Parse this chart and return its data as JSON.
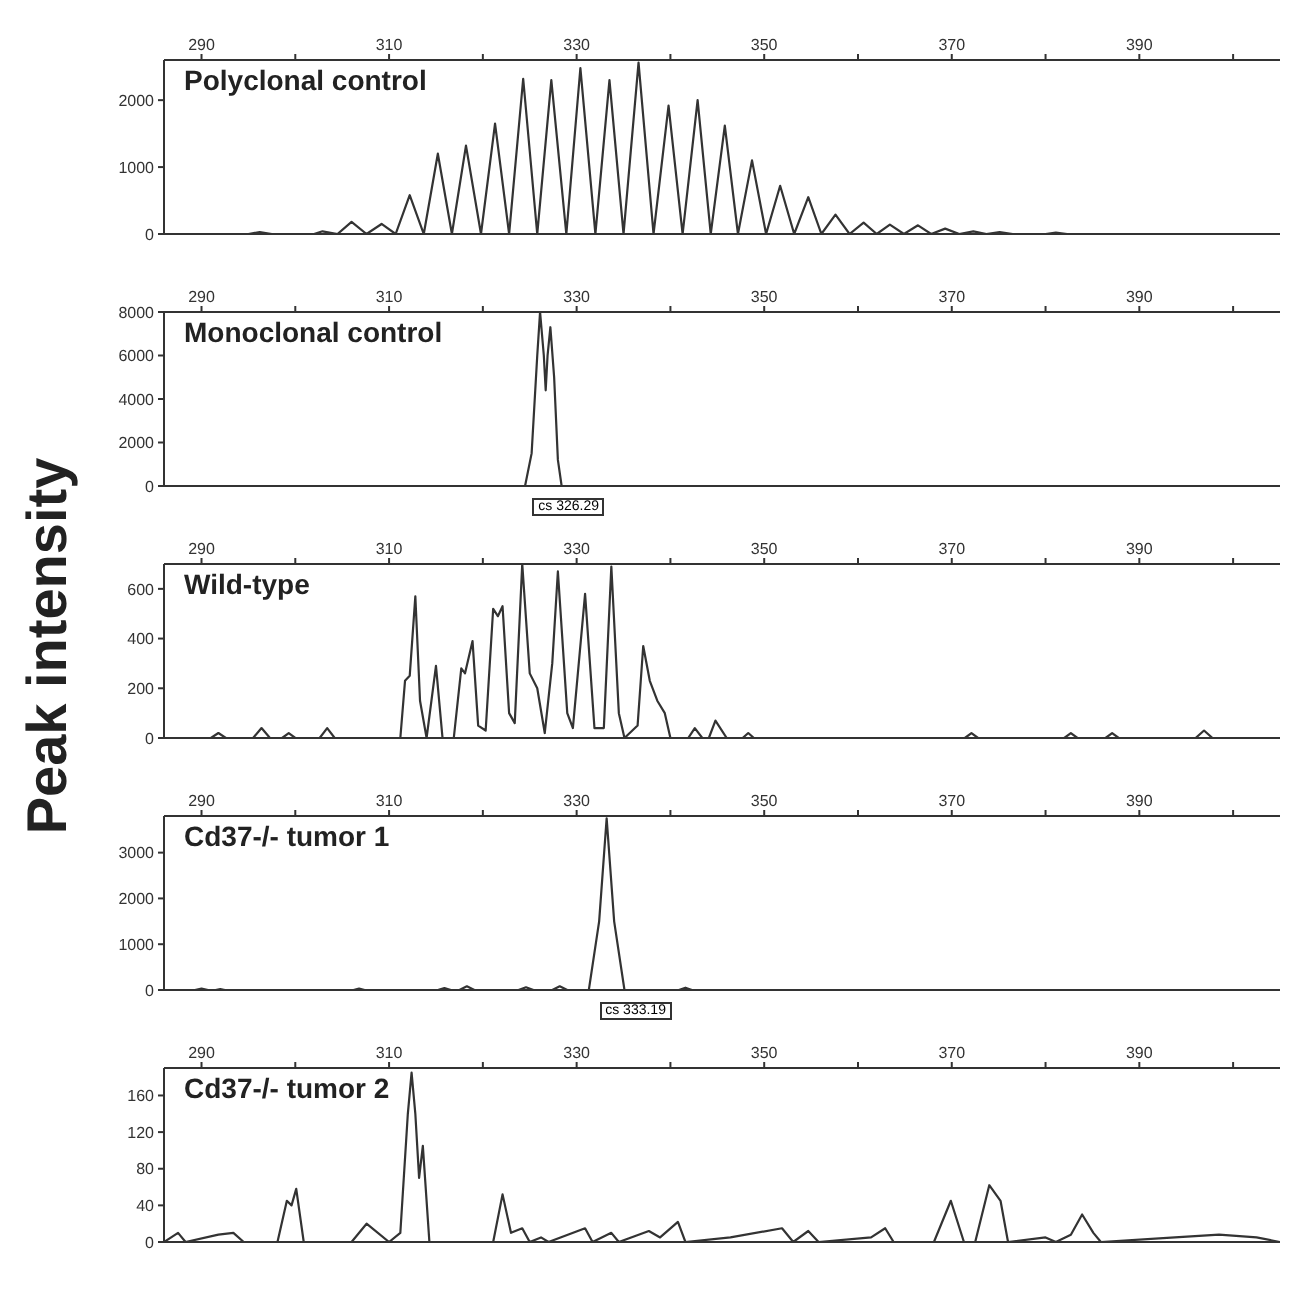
{
  "chart_data": [
    {
      "type": "line",
      "title": "Polyclonal control",
      "color": "#333333",
      "xlim": [
        286,
        405
      ],
      "xticks": [
        290,
        {
          "value": 300,
          "label": null
        },
        310,
        {
          "value": 320,
          "label": null
        },
        330,
        {
          "value": 340,
          "label": null
        },
        350,
        {
          "value": 360,
          "label": null
        },
        370,
        {
          "value": 380,
          "label": null
        },
        390,
        {
          "value": 400,
          "label": null
        }
      ],
      "ylim": [
        0,
        2600
      ],
      "yticks": [
        0,
        1000,
        2000
      ],
      "marker": "none",
      "line_style": "solid",
      "x": [
        286,
        295,
        296.2,
        297.5,
        302,
        302.9,
        304.5,
        306.0,
        307.6,
        309.2,
        310.7,
        312.2,
        313.7,
        315.2,
        316.7,
        318.2,
        319.8,
        321.3,
        322.8,
        324.3,
        325.8,
        327.3,
        328.9,
        330.4,
        332.0,
        333.5,
        335.0,
        336.6,
        338.2,
        339.8,
        341.3,
        342.9,
        344.3,
        345.8,
        347.2,
        348.7,
        350.2,
        351.7,
        353.2,
        354.7,
        356.1,
        357.6,
        359.1,
        360.6,
        362.0,
        363.4,
        364.9,
        366.4,
        367.8,
        369.3,
        370.8,
        372.3,
        373.7,
        375.1,
        376.5,
        380,
        381.1,
        382.3,
        405
      ],
      "values": [
        0,
        0,
        30,
        0,
        0,
        40,
        0,
        180,
        0,
        150,
        0,
        580,
        0,
        1200,
        0,
        1320,
        0,
        1650,
        0,
        2320,
        0,
        2300,
        0,
        2480,
        0,
        2300,
        0,
        2560,
        0,
        1920,
        0,
        2000,
        0,
        1620,
        0,
        1100,
        0,
        720,
        0,
        550,
        0,
        290,
        0,
        170,
        0,
        140,
        0,
        130,
        0,
        80,
        0,
        40,
        0,
        30,
        0,
        0,
        20,
        0,
        0
      ]
    },
    {
      "type": "line",
      "title": "Monoclonal control",
      "color": "#333333",
      "xlim": [
        286,
        405
      ],
      "xticks": [
        290,
        {
          "value": 300,
          "label": null
        },
        310,
        {
          "value": 320,
          "label": null
        },
        330,
        {
          "value": 340,
          "label": null
        },
        350,
        {
          "value": 360,
          "label": null
        },
        370,
        {
          "value": 380,
          "label": null
        },
        390,
        {
          "value": 400,
          "label": null
        }
      ],
      "ylim": [
        0,
        8000
      ],
      "yticks": [
        0,
        2000,
        4000,
        6000,
        8000
      ],
      "marker": "none",
      "line_style": "solid",
      "x": [
        286,
        324.5,
        325.2,
        325.8,
        326.1,
        326.5,
        326.7,
        326.9,
        327.2,
        327.6,
        328.0,
        328.4,
        405
      ],
      "values": [
        0,
        0,
        1500,
        6000,
        8000,
        6000,
        4400,
        6000,
        7300,
        5000,
        1200,
        0,
        0
      ],
      "annotations": [
        "cs 326.29"
      ]
    },
    {
      "type": "line",
      "title": "Wild-type",
      "ylabel": "Peak intensity",
      "color": "#333333",
      "xlim": [
        286,
        405
      ],
      "xticks": [
        290,
        {
          "value": 300,
          "label": null
        },
        310,
        {
          "value": 320,
          "label": null
        },
        330,
        {
          "value": 340,
          "label": null
        },
        350,
        {
          "value": 360,
          "label": null
        },
        370,
        {
          "value": 380,
          "label": null
        },
        390,
        {
          "value": 400,
          "label": null
        }
      ],
      "ylim": [
        0,
        700
      ],
      "yticks": [
        0,
        200,
        400,
        600
      ],
      "marker": "none",
      "line_style": "solid",
      "x": [
        286,
        291,
        291.8,
        292.6,
        295.5,
        296.4,
        297.3,
        298.6,
        299.3,
        300.0,
        302.6,
        303.4,
        304.2,
        305.8,
        306.4,
        307.0,
        311.2,
        311.7,
        312.2,
        312.8,
        313.3,
        314.0,
        315.0,
        315.7,
        316.9,
        317.7,
        318.1,
        318.9,
        319.5,
        320.3,
        321.1,
        321.6,
        322.1,
        322.8,
        323.4,
        324.2,
        325.0,
        325.8,
        326.6,
        327.4,
        328.0,
        329.0,
        329.6,
        330.9,
        331.9,
        332.9,
        333.7,
        334.5,
        335.1,
        336.5,
        337.1,
        337.8,
        338.6,
        339.4,
        340.0,
        341.9,
        342.6,
        343.4,
        344.1,
        344.8,
        346.0,
        347.7,
        348.3,
        348.9,
        371.4,
        372.1,
        372.8,
        382.0,
        382.7,
        383.4,
        386.4,
        387.1,
        387.8,
        396.0,
        396.9,
        397.8,
        405
      ],
      "values": [
        0,
        0,
        20,
        0,
        0,
        40,
        0,
        0,
        20,
        0,
        0,
        40,
        0,
        0,
        0,
        0,
        0,
        230,
        250,
        570,
        150,
        0,
        290,
        0,
        0,
        280,
        260,
        390,
        50,
        30,
        520,
        490,
        530,
        100,
        60,
        700,
        260,
        200,
        20,
        300,
        670,
        100,
        40,
        580,
        40,
        40,
        690,
        100,
        0,
        50,
        370,
        230,
        150,
        100,
        0,
        0,
        40,
        0,
        0,
        70,
        0,
        0,
        20,
        0,
        0,
        20,
        0,
        0,
        20,
        0,
        0,
        20,
        0,
        0,
        30,
        0,
        0
      ]
    },
    {
      "type": "line",
      "title": "Cd37-/- tumor 1",
      "color": "#333333",
      "xlim": [
        286,
        405
      ],
      "xticks": [
        290,
        {
          "value": 300,
          "label": null
        },
        310,
        {
          "value": 320,
          "label": null
        },
        330,
        {
          "value": 340,
          "label": null
        },
        350,
        {
          "value": 360,
          "label": null
        },
        370,
        {
          "value": 380,
          "label": null
        },
        390,
        {
          "value": 400,
          "label": null
        }
      ],
      "ylim": [
        0,
        3800
      ],
      "yticks": [
        0,
        1000,
        2000,
        3000
      ],
      "marker": "none",
      "line_style": "solid",
      "x": [
        286,
        289.3,
        290,
        290.7,
        291.5,
        292,
        292.5,
        306.2,
        306.8,
        307.4,
        315.2,
        315.9,
        316.6,
        317.5,
        318.3,
        319.1,
        323.8,
        324.6,
        325.4,
        327.4,
        328.2,
        329.0,
        331.3,
        332.4,
        333.2,
        334.0,
        335.1,
        340.9,
        341.6,
        342.3,
        405
      ],
      "values": [
        0,
        0,
        30,
        0,
        0,
        20,
        0,
        0,
        30,
        0,
        0,
        40,
        0,
        0,
        80,
        0,
        0,
        60,
        0,
        0,
        80,
        0,
        0,
        1500,
        3750,
        1500,
        0,
        0,
        50,
        0,
        0
      ],
      "annotations": [
        "cs 333.19"
      ]
    },
    {
      "type": "line",
      "title": "Cd37-/- tumor 2",
      "color": "#333333",
      "xlim": [
        286,
        405
      ],
      "xticks": [
        290,
        {
          "value": 300,
          "label": null
        },
        310,
        {
          "value": 320,
          "label": null
        },
        330,
        {
          "value": 340,
          "label": null
        },
        350,
        {
          "value": 360,
          "label": null
        },
        370,
        {
          "value": 380,
          "label": null
        },
        390,
        {
          "value": 400,
          "label": null
        }
      ],
      "ylim": [
        0,
        190
      ],
      "yticks": [
        0,
        40,
        80,
        120,
        160
      ],
      "marker": "none",
      "line_style": "solid",
      "x": [
        286,
        287.5,
        288.3,
        291.8,
        293.4,
        294.5,
        298.1,
        299.1,
        299.6,
        300.1,
        300.9,
        306.0,
        307.6,
        310.0,
        311.2,
        312.0,
        312.4,
        312.8,
        313.2,
        313.6,
        314.3,
        321.1,
        322.1,
        323.0,
        324.2,
        325.0,
        326.2,
        327.0,
        330.9,
        331.7,
        333.7,
        334.5,
        337.7,
        338.9,
        340.8,
        341.6,
        346.4,
        351.9,
        353.1,
        354.7,
        355.8,
        361.4,
        362.9,
        363.8,
        368.1,
        369.9,
        371.3,
        372.5,
        374.0,
        375.2,
        376.0,
        380.0,
        381.1,
        382.7,
        383.9,
        385.1,
        385.9,
        393.8,
        398.5,
        402.5,
        405
      ],
      "values": [
        0,
        10,
        0,
        8,
        10,
        0,
        0,
        45,
        40,
        58,
        0,
        0,
        20,
        0,
        10,
        140,
        185,
        140,
        70,
        105,
        0,
        0,
        52,
        10,
        15,
        0,
        5,
        0,
        15,
        0,
        10,
        0,
        12,
        5,
        22,
        0,
        5,
        15,
        0,
        12,
        0,
        5,
        15,
        0,
        0,
        45,
        0,
        0,
        62,
        45,
        0,
        5,
        0,
        8,
        30,
        10,
        0,
        5,
        8,
        5,
        0
      ]
    }
  ]
}
